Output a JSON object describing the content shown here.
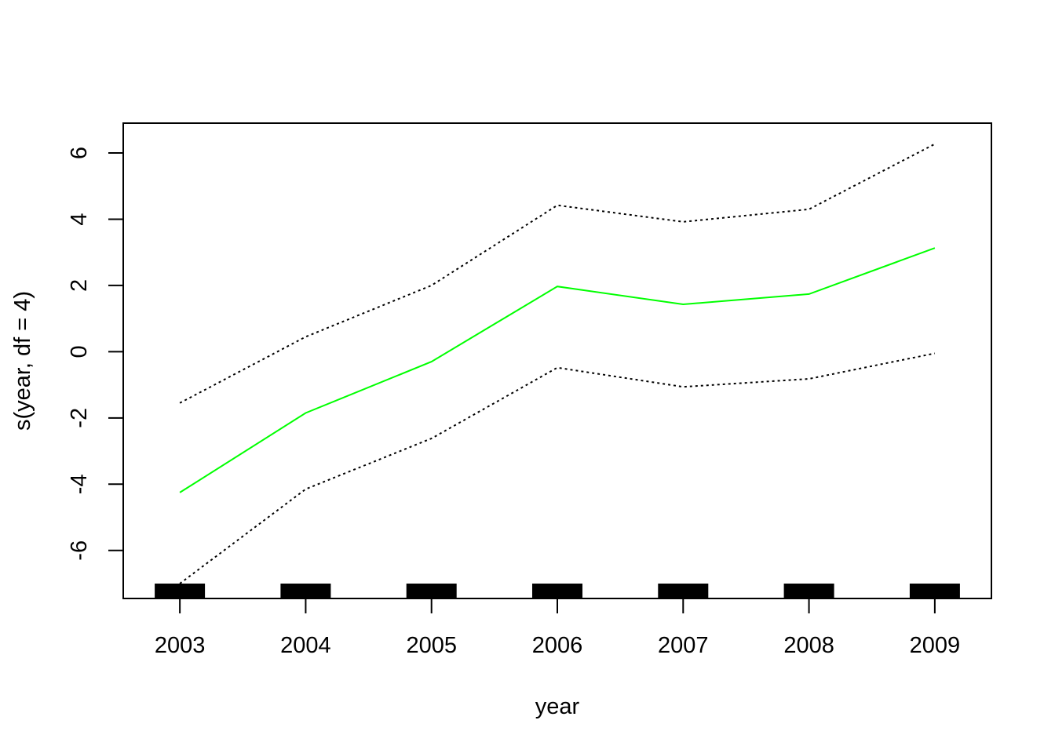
{
  "chart_data": {
    "type": "line",
    "title": "",
    "xlabel": "year",
    "ylabel": "s(year, df = 4)",
    "x": [
      2003,
      2004,
      2005,
      2006,
      2007,
      2008,
      2009
    ],
    "xlim": [
      2002.55,
      2009.45
    ],
    "ylim": [
      -7.45,
      6.9
    ],
    "x_ticks": [
      2003,
      2004,
      2005,
      2006,
      2007,
      2008,
      2009
    ],
    "y_ticks": [
      -6,
      -4,
      -2,
      0,
      2,
      4,
      6
    ],
    "grid": false,
    "legend": "none",
    "series": [
      {
        "role": "fit",
        "values": [
          -4.25,
          -1.85,
          -0.3,
          1.97,
          1.43,
          1.74,
          3.13
        ],
        "color": "#00ff00",
        "style": "solid"
      },
      {
        "role": "upper",
        "values": [
          -1.55,
          0.45,
          2.0,
          4.42,
          3.92,
          4.3,
          6.27
        ],
        "color": "#000000",
        "style": "dotted"
      },
      {
        "role": "lower",
        "values": [
          -7.0,
          -4.15,
          -2.62,
          -0.48,
          -1.06,
          -0.82,
          -0.05
        ],
        "color": "#000000",
        "style": "dotted"
      }
    ],
    "rug": [
      2003,
      2004,
      2005,
      2006,
      2007,
      2008,
      2009
    ]
  }
}
